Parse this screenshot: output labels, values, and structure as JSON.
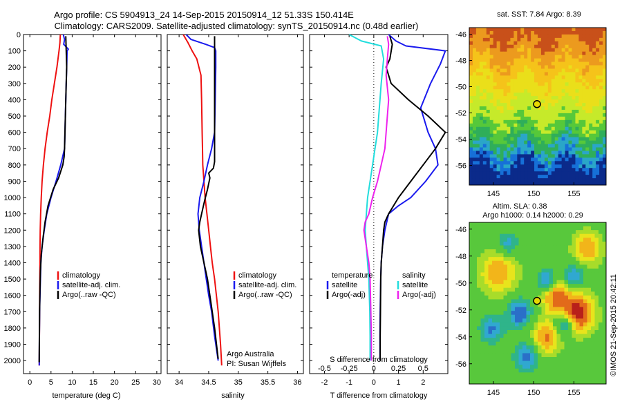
{
  "header": {
    "line1": "Argo profile: CS 5904913_24 14-Sep-2015 20150914_12 51.33S 150.414E",
    "line2": "Climatology: CARS2009. Satellite-adjusted climatology: synTS_20150914.nc (0.48d earlier)"
  },
  "colors": {
    "climatology": "#ee1111",
    "satellite": "#1a1aee",
    "argo": "#000000",
    "sat_salinity": "#22dddd",
    "argo_salinity": "#ee22ee"
  },
  "chart_data": [
    {
      "id": "temperature",
      "type": "line",
      "xlabel": "temperature (deg C)",
      "ylabel": "",
      "xlim": [
        -1.5,
        31
      ],
      "ylim": [
        2080,
        0
      ],
      "xticks": [
        "0",
        "5",
        "10",
        "15",
        "20",
        "25",
        "30"
      ],
      "yticks": [
        "0",
        "100",
        "200",
        "300",
        "400",
        "500",
        "600",
        "700",
        "800",
        "900",
        "1000",
        "1100",
        "1200",
        "1300",
        "1400",
        "1500",
        "1600",
        "1700",
        "1800",
        "1900",
        "2000"
      ],
      "legend": [
        "climatology",
        "satellite-adj. clim.",
        "Argo(..raw -QC)"
      ],
      "series": [
        {
          "name": "climatology",
          "color": "#ee1111",
          "x": [
            7.2,
            7.1,
            6.9,
            6.4,
            5.8,
            5.2,
            4.7,
            4.1,
            3.6,
            3.2,
            2.9,
            2.7,
            2.55,
            2.45,
            2.4,
            2.38,
            2.35,
            2.32,
            2.3,
            2.28,
            2.25,
            2.22
          ],
          "y": [
            0,
            50,
            100,
            200,
            300,
            400,
            500,
            600,
            700,
            800,
            900,
            1000,
            1100,
            1200,
            1300,
            1400,
            1500,
            1600,
            1700,
            1800,
            1900,
            2030
          ]
        },
        {
          "name": "satellite-adj. clim.",
          "color": "#1a1aee",
          "x": [
            7.9,
            8.2,
            8.0,
            9.1,
            8.8,
            8.7,
            8.6,
            8.5,
            8.4,
            8.3,
            8.2,
            7.3,
            6.2,
            5.0,
            4.0,
            3.4,
            2.9,
            2.6,
            2.5,
            2.4,
            2.3,
            2.25,
            2.22
          ],
          "y": [
            0,
            30,
            60,
            90,
            100,
            200,
            300,
            400,
            500,
            600,
            700,
            800,
            900,
            1000,
            1100,
            1200,
            1300,
            1400,
            1500,
            1600,
            1700,
            1850,
            2030
          ]
        },
        {
          "name": "Argo(..raw -QC)",
          "color": "#000000",
          "x": [
            8.5,
            8.6,
            8.7,
            8.6,
            8.5,
            8.4,
            8.3,
            8.2,
            8.1,
            7.8,
            6.8,
            5.5,
            4.3,
            3.6,
            3.1,
            2.7,
            2.5,
            2.4,
            2.3,
            2.25,
            2.2
          ],
          "y": [
            10,
            100,
            200,
            300,
            400,
            500,
            600,
            700,
            750,
            800,
            880,
            950,
            1050,
            1150,
            1250,
            1350,
            1450,
            1550,
            1700,
            1850,
            2010
          ]
        }
      ]
    },
    {
      "id": "salinity",
      "type": "line",
      "xlabel": "salinity",
      "ylabel": "",
      "xlim": [
        33.8,
        36.1
      ],
      "ylim": [
        2080,
        0
      ],
      "xticks": [
        "34",
        "34.5",
        "35",
        "35.5",
        "36"
      ],
      "legend": [
        "climatology",
        "satellite-adj. clim.",
        "Argo(..raw -QC)"
      ],
      "annotations": [
        "Argo Australia",
        "PI: Susan Wijffels"
      ],
      "series": [
        {
          "name": "climatology",
          "color": "#ee1111",
          "x": [
            34.07,
            34.15,
            34.22,
            34.3,
            34.37,
            34.38,
            34.385,
            34.39,
            34.395,
            34.4,
            34.42,
            34.44,
            34.47,
            34.5,
            34.53,
            34.56,
            34.6,
            34.63,
            34.66,
            34.68,
            34.7,
            34.72
          ],
          "y": [
            0,
            50,
            100,
            150,
            250,
            400,
            500,
            600,
            700,
            800,
            900,
            1000,
            1100,
            1200,
            1300,
            1400,
            1500,
            1600,
            1700,
            1800,
            1900,
            2030
          ]
        },
        {
          "name": "satellite-adj. clim.",
          "color": "#1a1aee",
          "x": [
            34.12,
            34.2,
            34.45,
            34.6,
            34.62,
            34.62,
            34.61,
            34.6,
            34.55,
            34.48,
            34.42,
            34.35,
            34.32,
            34.34,
            34.38,
            34.42,
            34.46,
            34.5,
            34.55,
            34.6,
            34.66
          ],
          "y": [
            0,
            30,
            60,
            80,
            100,
            200,
            400,
            600,
            700,
            800,
            900,
            1000,
            1100,
            1200,
            1300,
            1400,
            1500,
            1600,
            1700,
            1850,
            2000
          ]
        },
        {
          "name": "Argo(..raw -QC)",
          "color": "#000000",
          "x": [
            34.6,
            34.6,
            34.6,
            34.6,
            34.6,
            34.6,
            34.6,
            34.58,
            34.5,
            34.52,
            34.48,
            34.43,
            34.38,
            34.35,
            34.33,
            34.36,
            34.42,
            34.48,
            34.54,
            34.6,
            34.66
          ],
          "y": [
            10,
            100,
            200,
            300,
            500,
            700,
            780,
            820,
            850,
            880,
            950,
            1020,
            1100,
            1150,
            1200,
            1300,
            1400,
            1500,
            1650,
            1800,
            1990
          ]
        }
      ]
    },
    {
      "id": "difference",
      "type": "line",
      "xlabel": "T difference from climatology",
      "xlabel_top": "S difference from climatology",
      "xlim": [
        -2.6,
        3.0
      ],
      "ylim": [
        2080,
        0
      ],
      "xticks": [
        "-2",
        "-1",
        "0",
        "1",
        "2"
      ],
      "xticks_top": [
        "-0.5",
        "-0.25",
        "0",
        "0.25",
        "0.5"
      ],
      "legend_temp_title": "temperature",
      "legend_sal_title": "salinity",
      "legend": [
        "satellite",
        "Argo(-adj)",
        "satellite",
        "Argo(-adj)"
      ],
      "series": [
        {
          "name": "satellite",
          "color": "#1a1aee",
          "x": [
            0.6,
            0.9,
            1.3,
            2.9,
            2.7,
            2.3,
            1.9,
            2.2,
            2.5,
            2.6,
            2.1,
            1.5,
            1.0,
            0.6,
            0.45,
            0.35,
            0.3,
            0.28,
            0.26,
            0.25,
            0.25
          ],
          "y": [
            0,
            40,
            70,
            100,
            180,
            300,
            450,
            600,
            700,
            800,
            900,
            1000,
            1050,
            1100,
            1200,
            1300,
            1400,
            1500,
            1700,
            1850,
            2000
          ]
        },
        {
          "name": "Argo(-adj)",
          "color": "#000000",
          "x": [
            0.65,
            0.75,
            0.65,
            0.5,
            0.7,
            1.4,
            2.2,
            2.9,
            2.5,
            2.0,
            1.5,
            1.0,
            0.6,
            0.45,
            0.4,
            0.35,
            0.3,
            0.28,
            0.27,
            0.26,
            0.26
          ],
          "y": [
            10,
            60,
            150,
            200,
            300,
            400,
            500,
            600,
            700,
            800,
            900,
            1000,
            1100,
            1150,
            1200,
            1300,
            1400,
            1500,
            1700,
            1850,
            2000
          ]
        },
        {
          "name": "satellite",
          "color": "#22dddd",
          "x": [
            -1.0,
            -0.5,
            0.3,
            0.4,
            0.3,
            0.2,
            0.15,
            0.05,
            -0.05,
            -0.15,
            -0.25,
            -0.3,
            -0.35,
            -0.3,
            -0.25,
            -0.2,
            -0.18,
            -0.16,
            -0.15,
            -0.15
          ],
          "y": [
            0,
            40,
            70,
            150,
            300,
            500,
            600,
            700,
            800,
            900,
            1000,
            1100,
            1200,
            1300,
            1400,
            1500,
            1600,
            1700,
            1850,
            2000
          ]
        },
        {
          "name": "Argo(-adj)",
          "color": "#ee22ee",
          "x": [
            0.55,
            0.6,
            0.55,
            0.5,
            0.6,
            0.55,
            0.5,
            0.45,
            0.3,
            0.15,
            -0.05,
            -0.2,
            -0.35,
            -0.4,
            -0.3,
            -0.2,
            -0.15,
            -0.12,
            -0.1,
            -0.1
          ],
          "y": [
            10,
            60,
            150,
            250,
            400,
            500,
            600,
            700,
            800,
            900,
            1000,
            1100,
            1150,
            1200,
            1300,
            1400,
            1500,
            1700,
            1850,
            2000
          ]
        }
      ]
    },
    {
      "id": "sst_map",
      "type": "heatmap",
      "title": "sat. SST: 7.84  Argo: 8.39",
      "xlim": [
        142,
        159
      ],
      "ylim": [
        -57.5,
        -45.5
      ],
      "xticks": [
        "145",
        "150",
        "155"
      ],
      "yticks": [
        "-46",
        "-48",
        "-50",
        "-52",
        "-54",
        "-56"
      ],
      "marker": {
        "lon": 150.414,
        "lat": -51.33
      }
    },
    {
      "id": "sla_map",
      "type": "heatmap",
      "title": "Altim. SLA: 0.38",
      "subtitle": "Argo h1000: 0.14 h2000: 0.29",
      "xlim": [
        142,
        159
      ],
      "ylim": [
        -57.5,
        -45.5
      ],
      "xticks": [
        "145",
        "150",
        "155"
      ],
      "yticks": [
        "-46",
        "-48",
        "-50",
        "-52",
        "-54",
        "-56"
      ],
      "marker": {
        "lon": 150.414,
        "lat": -51.33
      }
    }
  ],
  "credit": "©IMOS 21-Sep-2015 20:42:11"
}
